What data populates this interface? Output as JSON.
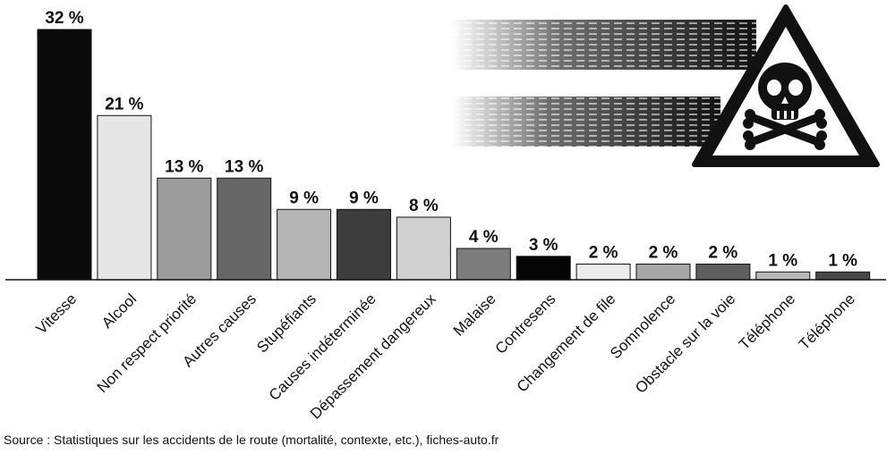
{
  "chart_data": {
    "type": "bar",
    "categories": [
      "Vitesse",
      "Alcool",
      "Non respect priorité",
      "Autres causes",
      "Stupéfiants",
      "Causes indéterminée",
      "Dépassement dangereux",
      "Malaise",
      "Contresens",
      "Changement de file",
      "Somnolence",
      "Obstacle sur la voie",
      "Téléphone",
      "Téléphone"
    ],
    "values": [
      32,
      21,
      13,
      13,
      9,
      9,
      8,
      4,
      3,
      2,
      2,
      2,
      1,
      1
    ],
    "value_labels": [
      "32 %",
      "21 %",
      "13 %",
      "13 %",
      "9 %",
      "9 %",
      "8 %",
      "4 %",
      "3 %",
      "2 %",
      "2 %",
      "2 %",
      "1 %",
      "1 %"
    ],
    "bar_colors": [
      "#0a0a0a",
      "#e6e6e6",
      "#9c9c9c",
      "#666666",
      "#b4b4b4",
      "#3c3c3c",
      "#d0d0d0",
      "#7c7c7c",
      "#050505",
      "#ececec",
      "#a6a6a6",
      "#5e5e5e",
      "#b8b8b8",
      "#474747"
    ],
    "ylim": [
      0,
      32
    ],
    "title": "",
    "xlabel": "",
    "ylabel": ""
  },
  "illustration": {
    "icon": "skull-crossbones-warning-icon"
  },
  "source": "Source : Statistiques sur les accidents de le route (mortalité, contexte, etc.), fiches-auto.fr"
}
